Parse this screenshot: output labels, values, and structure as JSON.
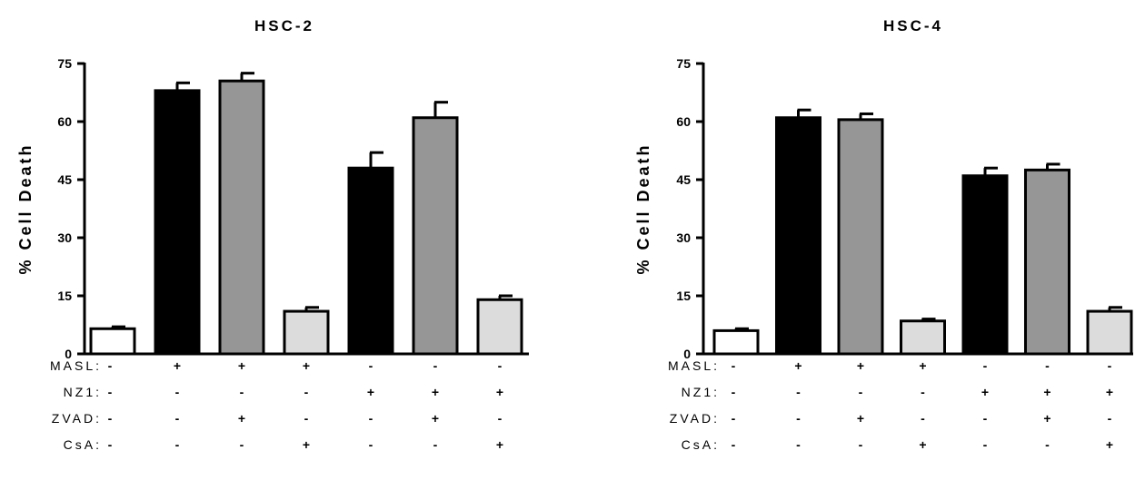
{
  "chart_data": [
    {
      "type": "bar",
      "title": "HSC-2",
      "ylabel": "% Cell Death",
      "xlabel": "",
      "ylim": [
        0,
        75
      ],
      "yticks": [
        "0",
        "15",
        "30",
        "45",
        "60",
        "75"
      ],
      "grid": false,
      "bars": [
        {
          "value": 6.5,
          "error": 0.5,
          "color": "#ffffff"
        },
        {
          "value": 68,
          "error": 2.0,
          "color": "#000000"
        },
        {
          "value": 70.5,
          "error": 2.0,
          "color": "#969696"
        },
        {
          "value": 11,
          "error": 1.0,
          "color": "#dcdcdc"
        },
        {
          "value": 48,
          "error": 4.0,
          "color": "#000000"
        },
        {
          "value": 61,
          "error": 4.0,
          "color": "#969696"
        },
        {
          "value": 14,
          "error": 1.0,
          "color": "#dcdcdc"
        }
      ],
      "conditions": [
        {
          "label": "MASL:",
          "signs": [
            "-",
            "+",
            "+",
            "+",
            "-",
            "-",
            "-"
          ]
        },
        {
          "label": "NZ1:",
          "signs": [
            "-",
            "-",
            "-",
            "-",
            "+",
            "+",
            "+"
          ]
        },
        {
          "label": "ZVAD:",
          "signs": [
            "-",
            "-",
            "+",
            "-",
            "-",
            "+",
            "-"
          ]
        },
        {
          "label": "CsA:",
          "signs": [
            "-",
            "-",
            "-",
            "+",
            "-",
            "-",
            "+"
          ]
        }
      ]
    },
    {
      "type": "bar",
      "title": "HSC-4",
      "ylabel": "% Cell Death",
      "xlabel": "",
      "ylim": [
        0,
        75
      ],
      "yticks": [
        "0",
        "15",
        "30",
        "45",
        "60",
        "75"
      ],
      "grid": false,
      "bars": [
        {
          "value": 6,
          "error": 0.5,
          "color": "#ffffff"
        },
        {
          "value": 61,
          "error": 2.0,
          "color": "#000000"
        },
        {
          "value": 60.5,
          "error": 1.5,
          "color": "#969696"
        },
        {
          "value": 8.5,
          "error": 0.5,
          "color": "#dcdcdc"
        },
        {
          "value": 46,
          "error": 2.0,
          "color": "#000000"
        },
        {
          "value": 47.5,
          "error": 1.5,
          "color": "#969696"
        },
        {
          "value": 11,
          "error": 1.0,
          "color": "#dcdcdc"
        }
      ],
      "conditions": [
        {
          "label": "MASL:",
          "signs": [
            "-",
            "+",
            "+",
            "+",
            "-",
            "-",
            "-"
          ]
        },
        {
          "label": "NZ1:",
          "signs": [
            "-",
            "-",
            "-",
            "-",
            "+",
            "+",
            "+"
          ]
        },
        {
          "label": "ZVAD:",
          "signs": [
            "-",
            "-",
            "+",
            "-",
            "-",
            "+",
            "-"
          ]
        },
        {
          "label": "CsA:",
          "signs": [
            "-",
            "-",
            "-",
            "+",
            "-",
            "-",
            "+"
          ]
        }
      ]
    }
  ]
}
